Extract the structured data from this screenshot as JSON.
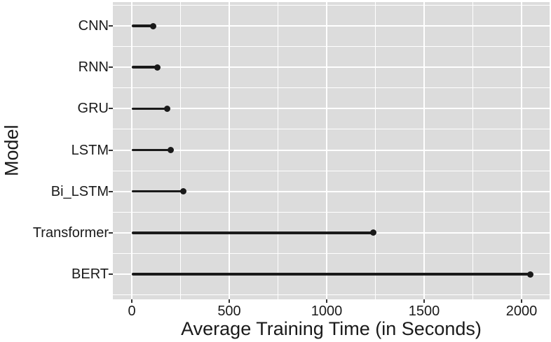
{
  "chart_data": {
    "type": "bar",
    "variant": "horizontal-lollipop",
    "title": "",
    "xlabel": "Average Training Time (in Seconds)",
    "ylabel": "Model",
    "categories": [
      "CNN",
      "RNN",
      "GRU",
      "LSTM",
      "Bi_LSTM",
      "Transformer",
      "BERT"
    ],
    "values": [
      110,
      130,
      180,
      200,
      265,
      1240,
      2045
    ],
    "x_ticks": [
      0,
      500,
      1000,
      1500,
      2000
    ],
    "x_tick_labels": [
      "0",
      "500",
      "1000",
      "1500",
      "2000"
    ],
    "x_minor_ticks": [
      250,
      750,
      1250,
      1750
    ],
    "xlim": [
      -97,
      2144
    ],
    "grid": "major-and-minor-white-on-gray",
    "legend": "none",
    "colors": {
      "panel_bg": "#dcdcdc",
      "grid": "#ffffff",
      "series": "#1a1a1a",
      "text": "#1a1a1a",
      "tick_mark": "#333333",
      "figure_bg": "#ffffff"
    }
  }
}
